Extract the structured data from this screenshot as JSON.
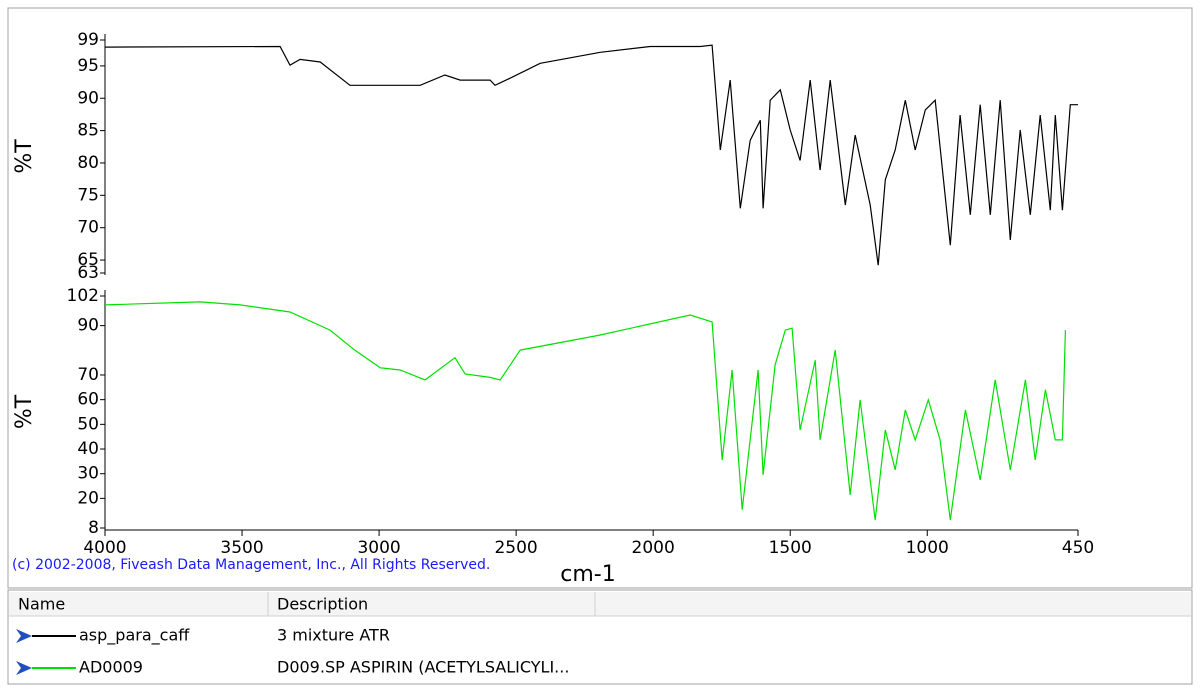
{
  "chart_data": [
    {
      "type": "line",
      "y_label": "%T",
      "xlim": [
        4000,
        450
      ],
      "ylim": [
        63,
        99
      ],
      "yticks": [
        63,
        65,
        70,
        75,
        80,
        85,
        90,
        95,
        99
      ],
      "series": [
        {
          "name": "asp_para_caff",
          "color": "#000000",
          "x": [
            4000,
            3361,
            3325,
            3288,
            3215,
            3106,
            3000,
            2850,
            2760,
            2704,
            2595,
            2577,
            2522,
            2412,
            2193,
            2011,
            1828,
            1785,
            1755,
            1719,
            1682,
            1646,
            1609,
            1599,
            1573,
            1536,
            1500,
            1464,
            1427,
            1391,
            1354,
            1299,
            1263,
            1208,
            1179,
            1153,
            1117,
            1080,
            1044,
            1007,
            971,
            916,
            880,
            843,
            807,
            770,
            734,
            697,
            661,
            624,
            588,
            551,
            533,
            507,
            478,
            450
          ],
          "values": [
            97.9,
            98,
            95.1,
            96,
            95.6,
            92,
            92,
            92,
            93.6,
            92.8,
            92.8,
            92,
            93.1,
            95.4,
            97.1,
            98,
            98,
            98.2,
            82,
            92.8,
            73,
            83.5,
            86.6,
            73,
            89.7,
            91.3,
            85.1,
            80.4,
            92.8,
            78.9,
            92.8,
            73.5,
            84.3,
            73.5,
            64.2,
            77.4,
            82,
            89.7,
            82,
            88.2,
            89.7,
            67.3,
            87.4,
            72,
            89,
            72,
            89.7,
            68.1,
            85.1,
            72,
            87.4,
            72.7,
            87.4,
            72.7,
            89,
            89
          ]
        }
      ]
    },
    {
      "type": "line",
      "y_label": "%T",
      "x_label": "cm-1",
      "xlim": [
        4000,
        450
      ],
      "ylim": [
        8,
        102
      ],
      "xticks": [
        4000,
        3500,
        3000,
        2500,
        2000,
        1500,
        1000,
        450
      ],
      "yticks": [
        8,
        20,
        30,
        40,
        50,
        60,
        70,
        90,
        102
      ],
      "series": [
        {
          "name": "AD0009",
          "color": "#00e000",
          "x": [
            4000,
            3653,
            3507,
            3325,
            3179,
            3088,
            2996,
            2923,
            2832,
            2723,
            2686,
            2595,
            2558,
            2485,
            2193,
            1865,
            1785,
            1748,
            1712,
            1675,
            1617,
            1599,
            1555,
            1518,
            1493,
            1464,
            1409,
            1391,
            1336,
            1281,
            1245,
            1190,
            1153,
            1117,
            1080,
            1044,
            996,
            953,
            916,
            861,
            807,
            752,
            697,
            642,
            606,
            569,
            533,
            507,
            496
          ],
          "values": [
            98.4,
            99.6,
            98.4,
            95.5,
            88.2,
            80,
            72.9,
            72,
            68,
            77,
            70.4,
            69,
            68,
            80.1,
            86.2,
            94.3,
            91.5,
            35.6,
            72,
            15.4,
            72,
            29.5,
            74.1,
            88.2,
            89,
            47.7,
            76,
            43.7,
            80.1,
            21.4,
            59.9,
            11.3,
            47.7,
            31.6,
            55.8,
            43.7,
            59.9,
            43.7,
            11.3,
            55.8,
            27.5,
            68,
            31.6,
            68,
            35.6,
            64,
            43.7,
            43.7,
            88.2
          ]
        }
      ]
    }
  ],
  "copyright": "(c) 2002-2008, Fiveash Data Management, Inc., All Rights Reserved.",
  "table": {
    "columns": [
      "Name",
      "Description"
    ],
    "descriptions": [
      "3 mixture ATR",
      "D009.SP ASPIRIN (ACETYLSALICYLI..."
    ]
  }
}
